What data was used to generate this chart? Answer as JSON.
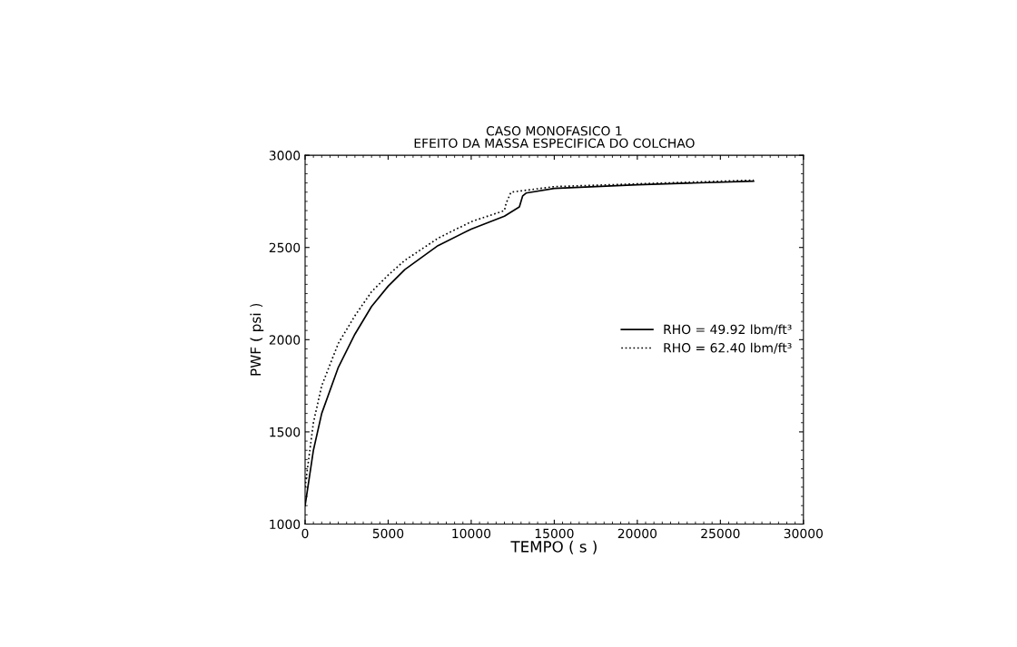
{
  "chart_data": {
    "type": "line",
    "title": "CASO MONOFASICO 1\nEFEITO DA MASSA ESPECIFICA DO COLCHAO",
    "xlabel": "TEMPO ( s )",
    "ylabel": "PWF ( psi )",
    "xlim": [
      0,
      30000
    ],
    "xticks": [
      0,
      5000,
      10000,
      15000,
      20000,
      25000,
      30000
    ],
    "ylim": [
      1000,
      3000
    ],
    "yticks": [
      1000,
      1500,
      2000,
      2500,
      3000
    ],
    "grid": false,
    "legend": "center right",
    "series": [
      {
        "name": "RHO = 49.92 lbm/ft³",
        "color": "#000000",
        "line_style": "solid",
        "x": [
          0,
          500,
          1000,
          2000,
          3000,
          4000,
          5000,
          6000,
          8000,
          10000,
          12000,
          12900,
          13100,
          13300,
          15000,
          20000,
          27000
        ],
        "values": [
          1100,
          1400,
          1600,
          1850,
          2030,
          2180,
          2290,
          2380,
          2510,
          2600,
          2670,
          2720,
          2780,
          2795,
          2820,
          2840,
          2860
        ]
      },
      {
        "name": "RHO = 62.40 lbm/ft³",
        "color": "#000000",
        "line_style": "dotted",
        "x": [
          0,
          500,
          1000,
          2000,
          3000,
          4000,
          5000,
          6000,
          8000,
          10000,
          12000,
          12100,
          12400,
          15000,
          20000,
          27000
        ],
        "values": [
          1200,
          1550,
          1750,
          1980,
          2130,
          2260,
          2350,
          2430,
          2550,
          2640,
          2700,
          2740,
          2800,
          2830,
          2845,
          2865
        ]
      }
    ]
  }
}
